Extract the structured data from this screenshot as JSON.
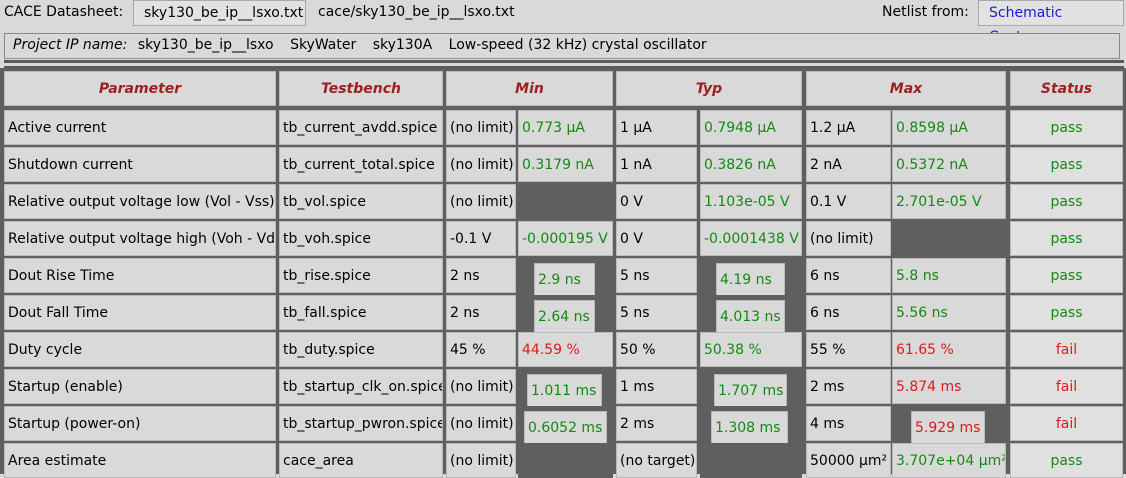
{
  "topbar": {
    "datasheet_label": "CACE Datasheet:",
    "datasheet_file": "sky130_be_ip__lsxo.txt",
    "datasheet_path": "cace/sky130_be_ip__lsxo.txt",
    "netlist_label": "Netlist from:",
    "netlist_source": "Schematic Capture"
  },
  "project": {
    "label": "Project IP name:",
    "name": "sky130_be_ip__lsxo",
    "foundry": "SkyWater",
    "process": "sky130A",
    "description": "Low-speed (32 kHz) crystal oscillator"
  },
  "colors": {
    "pass": "#128a12",
    "fail": "#e01818",
    "header": "#a02020",
    "link": "#1919d6"
  },
  "table": {
    "headers": [
      "Parameter",
      "Testbench",
      "Min",
      "Typ",
      "Max",
      "Status"
    ],
    "rows": [
      {
        "parameter": "Active current",
        "testbench": "tb_current_avdd.spice",
        "min_spec": "(no limit)",
        "min_val": "0.773 µA",
        "min_state": "pass",
        "typ_spec": "1 µA",
        "typ_val": "0.7948 µA",
        "typ_state": "pass",
        "max_spec": "1.2 µA",
        "max_val": "0.8598 µA",
        "max_state": "pass",
        "status": "pass"
      },
      {
        "parameter": "Shutdown current",
        "testbench": "tb_current_total.spice",
        "min_spec": "(no limit)",
        "min_val": "0.3179 nA",
        "min_state": "pass",
        "typ_spec": "1 nA",
        "typ_val": "0.3826 nA",
        "typ_state": "pass",
        "max_spec": "2 nA",
        "max_val": "0.5372 nA",
        "max_state": "pass",
        "status": "pass"
      },
      {
        "parameter": "Relative output voltage low (Vol - Vss)",
        "testbench": "tb_vol.spice",
        "min_spec": "(no limit)",
        "min_val": "",
        "min_state": "empty",
        "typ_spec": "0 V",
        "typ_val": "1.103e-05 V",
        "typ_state": "pass",
        "max_spec": "0.1 V",
        "max_val": "2.701e-05 V",
        "max_state": "pass",
        "status": "pass"
      },
      {
        "parameter": "Relative output voltage high (Voh - Vdd)",
        "testbench": "tb_voh.spice",
        "min_spec": "-0.1 V",
        "min_val": "-0.000195 V",
        "min_state": "pass",
        "typ_spec": "0 V",
        "typ_val": "-0.0001438 V",
        "typ_state": "pass",
        "max_spec": "(no limit)",
        "max_val": "",
        "max_state": "empty",
        "status": "pass"
      },
      {
        "parameter": "Dout Rise Time",
        "testbench": "tb_rise.spice",
        "min_spec": "2 ns",
        "min_val": "2.9 ns",
        "min_state": "pass",
        "typ_spec": "5 ns",
        "typ_val": "4.19 ns",
        "typ_state": "pass",
        "max_spec": "6 ns",
        "max_val": "5.8 ns",
        "max_state": "pass",
        "status": "pass"
      },
      {
        "parameter": "Dout Fall Time",
        "testbench": "tb_fall.spice",
        "min_spec": "2 ns",
        "min_val": "2.64 ns",
        "min_state": "pass",
        "typ_spec": "5 ns",
        "typ_val": "4.013 ns",
        "typ_state": "pass",
        "max_spec": "6 ns",
        "max_val": "5.56 ns",
        "max_state": "pass",
        "status": "pass"
      },
      {
        "parameter": "Duty cycle",
        "testbench": "tb_duty.spice",
        "min_spec": "45 %",
        "min_val": "44.59 %",
        "min_state": "fail",
        "typ_spec": "50 %",
        "typ_val": "50.38 %",
        "typ_state": "pass",
        "max_spec": "55 %",
        "max_val": "61.65 %",
        "max_state": "fail",
        "status": "fail"
      },
      {
        "parameter": "Startup (enable)",
        "testbench": "tb_startup_clk_on.spice",
        "min_spec": "(no limit)",
        "min_val": "1.011 ms",
        "min_state": "pass",
        "typ_spec": "1 ms",
        "typ_val": "1.707 ms",
        "typ_state": "pass",
        "max_spec": "2 ms",
        "max_val": "5.874 ms",
        "max_state": "fail",
        "status": "fail"
      },
      {
        "parameter": "Startup (power-on)",
        "testbench": "tb_startup_pwron.spice",
        "min_spec": "(no limit)",
        "min_val": "0.6052 ms",
        "min_state": "pass",
        "typ_spec": "2 ms",
        "typ_val": "1.308 ms",
        "typ_state": "pass",
        "max_spec": "4 ms",
        "max_val": "5.929 ms",
        "max_state": "fail",
        "status": "fail"
      },
      {
        "parameter": "Area estimate",
        "testbench": "cace_area",
        "min_spec": "(no limit)",
        "min_val": "",
        "min_state": "empty",
        "typ_spec": "(no target)",
        "typ_val": "",
        "typ_state": "empty",
        "max_spec": "50000 µm²",
        "max_val": "3.707e+04 µm²",
        "max_state": "pass",
        "status": "pass"
      }
    ]
  }
}
